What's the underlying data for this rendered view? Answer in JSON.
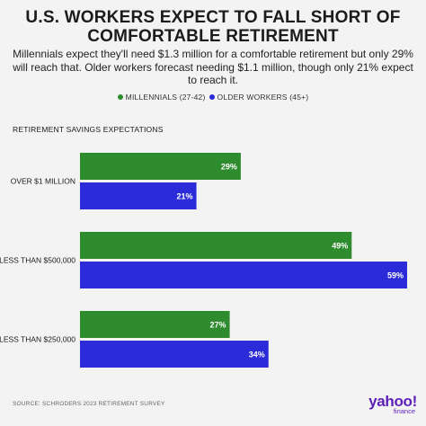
{
  "title": "U.S. WORKERS EXPECT TO FALL SHORT OF COMFORTABLE RETIREMENT",
  "subtitle": "Millennials expect they'll need $1.3 million for a comfortable retirement but only 29% will reach that. Older workers forecast needing $1.1 million, though only 21% expect to reach it.",
  "section_label": "RETIREMENT SAVINGS EXPECTATIONS",
  "source": "SOURCE: SCHRODERS 2023 RETIREMENT SURVEY",
  "logo": {
    "main": "yahoo!",
    "sub": "finance"
  },
  "colors": {
    "millennials": "#2e8b2e",
    "older_workers": "#2b2bd9",
    "background": "#f3f3f3"
  },
  "chart_data": {
    "type": "bar",
    "orientation": "horizontal",
    "categories": [
      "OVER $1 MILLION",
      "LESS THAN $500,000",
      "LESS THAN $250,000"
    ],
    "series": [
      {
        "name": "MILLENNIALS (27-42)",
        "values": [
          29,
          49,
          27
        ],
        "labels": [
          "29%",
          "49%",
          "27%"
        ]
      },
      {
        "name": "OLDER WORKERS (45+)",
        "values": [
          21,
          59,
          34
        ],
        "labels": [
          "21%",
          "59%",
          "34%"
        ]
      }
    ],
    "xlim": [
      0,
      59
    ],
    "legend": "top-center",
    "grid": false
  }
}
